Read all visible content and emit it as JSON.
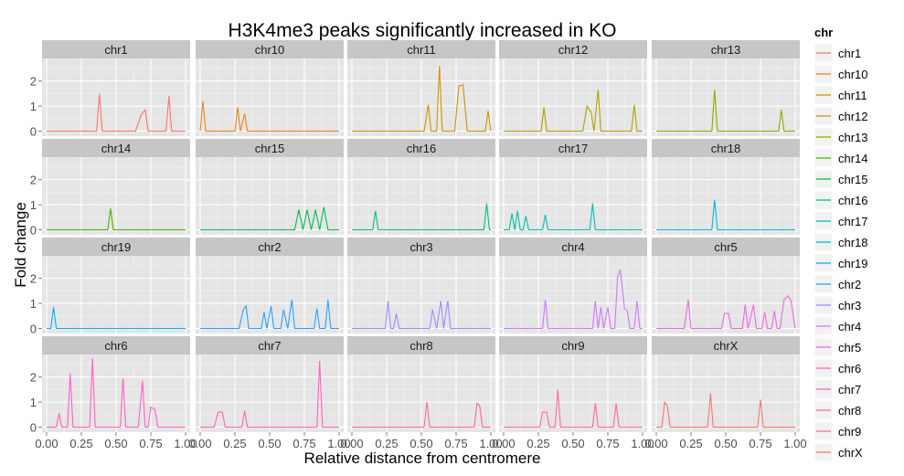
{
  "chart_data": {
    "type": "line",
    "title": "H3K4me3 peaks significantly increased in KO",
    "xlabel": "Relative distance from centromere",
    "ylabel": "Fold change",
    "xlim": [
      0,
      1
    ],
    "ylim": [
      -0.2,
      2.9
    ],
    "x_ticks": [
      0,
      0.25,
      0.5,
      0.75,
      1
    ],
    "x_tick_labels": [
      "0.00",
      "0.25",
      "0.50",
      "0.75",
      "1.00"
    ],
    "y_ticks": [
      0,
      1,
      2
    ],
    "y_tick_labels": [
      "0",
      "1",
      "2"
    ],
    "grid": true,
    "layout": "facet-wrap 5 columns x 4 rows",
    "legend": {
      "title": "chr",
      "position": "right"
    },
    "series": [
      {
        "name": "chr1",
        "color": "#F8766D",
        "points": [
          [
            0,
            0
          ],
          [
            0.36,
            0
          ],
          [
            0.38,
            1.5
          ],
          [
            0.4,
            0
          ],
          [
            0.64,
            0
          ],
          [
            0.68,
            0.65
          ],
          [
            0.71,
            0.85
          ],
          [
            0.73,
            0
          ],
          [
            0.86,
            0
          ],
          [
            0.88,
            1.4
          ],
          [
            0.9,
            0
          ],
          [
            1.0,
            0
          ]
        ]
      },
      {
        "name": "chr10",
        "color": "#E7851E",
        "points": [
          [
            0,
            0
          ],
          [
            0.02,
            1.2
          ],
          [
            0.04,
            0
          ],
          [
            0.25,
            0
          ],
          [
            0.27,
            0.95
          ],
          [
            0.29,
            0
          ],
          [
            0.32,
            0.7
          ],
          [
            0.34,
            0
          ],
          [
            1.0,
            0
          ]
        ]
      },
      {
        "name": "chr11",
        "color": "#D09400",
        "points": [
          [
            0,
            0
          ],
          [
            0.52,
            0
          ],
          [
            0.55,
            1.05
          ],
          [
            0.57,
            0
          ],
          [
            0.61,
            0
          ],
          [
            0.63,
            2.6
          ],
          [
            0.65,
            0
          ],
          [
            0.74,
            0
          ],
          [
            0.77,
            1.8
          ],
          [
            0.8,
            1.85
          ],
          [
            0.83,
            0
          ],
          [
            0.96,
            0
          ],
          [
            0.98,
            0.8
          ],
          [
            1.0,
            0
          ]
        ]
      },
      {
        "name": "chr12",
        "color": "#B2A100",
        "points": [
          [
            0,
            0
          ],
          [
            0.27,
            0
          ],
          [
            0.29,
            0.95
          ],
          [
            0.31,
            0
          ],
          [
            0.57,
            0
          ],
          [
            0.6,
            1.0
          ],
          [
            0.63,
            0.75
          ],
          [
            0.65,
            0
          ],
          [
            0.68,
            1.65
          ],
          [
            0.7,
            0
          ],
          [
            0.92,
            0
          ],
          [
            0.94,
            1.05
          ],
          [
            0.96,
            0
          ],
          [
            1.0,
            0
          ]
        ]
      },
      {
        "name": "chr13",
        "color": "#89AC00",
        "points": [
          [
            0,
            0
          ],
          [
            0.4,
            0
          ],
          [
            0.42,
            1.65
          ],
          [
            0.44,
            0
          ],
          [
            0.88,
            0
          ],
          [
            0.9,
            0.85
          ],
          [
            0.92,
            0
          ],
          [
            1.0,
            0
          ]
        ]
      },
      {
        "name": "chr14",
        "color": "#45B500",
        "points": [
          [
            0,
            0
          ],
          [
            0.44,
            0
          ],
          [
            0.46,
            0.85
          ],
          [
            0.48,
            0
          ],
          [
            1.0,
            0
          ]
        ]
      },
      {
        "name": "chr15",
        "color": "#00BC51",
        "points": [
          [
            0,
            0
          ],
          [
            0.68,
            0
          ],
          [
            0.71,
            0.8
          ],
          [
            0.74,
            0
          ],
          [
            0.77,
            0.8
          ],
          [
            0.8,
            0
          ],
          [
            0.83,
            0.8
          ],
          [
            0.86,
            0
          ],
          [
            0.89,
            0.9
          ],
          [
            0.92,
            0
          ],
          [
            1.0,
            0
          ]
        ]
      },
      {
        "name": "chr16",
        "color": "#00C087",
        "points": [
          [
            0,
            0
          ],
          [
            0.15,
            0
          ],
          [
            0.17,
            0.75
          ],
          [
            0.19,
            0
          ],
          [
            0.95,
            0
          ],
          [
            0.97,
            1.05
          ],
          [
            0.99,
            0
          ],
          [
            1.0,
            0
          ]
        ]
      },
      {
        "name": "chr17",
        "color": "#00C0B2",
        "points": [
          [
            0,
            0
          ],
          [
            0.04,
            0
          ],
          [
            0.06,
            0.65
          ],
          [
            0.08,
            0
          ],
          [
            0.1,
            0.75
          ],
          [
            0.12,
            0
          ],
          [
            0.14,
            0
          ],
          [
            0.16,
            0.55
          ],
          [
            0.18,
            0
          ],
          [
            0.28,
            0
          ],
          [
            0.3,
            0.6
          ],
          [
            0.32,
            0
          ],
          [
            0.62,
            0
          ],
          [
            0.64,
            1.05
          ],
          [
            0.66,
            0
          ],
          [
            1.0,
            0
          ]
        ]
      },
      {
        "name": "chr18",
        "color": "#00BCD6",
        "points": [
          [
            0,
            0
          ],
          [
            0.4,
            0
          ],
          [
            0.42,
            1.2
          ],
          [
            0.44,
            0
          ],
          [
            1.0,
            0
          ]
        ]
      },
      {
        "name": "chr19",
        "color": "#00B3F2",
        "points": [
          [
            0,
            0
          ],
          [
            0.03,
            0
          ],
          [
            0.05,
            0.85
          ],
          [
            0.07,
            0
          ],
          [
            1.0,
            0
          ]
        ]
      },
      {
        "name": "chr2",
        "color": "#29A3FF",
        "points": [
          [
            0,
            0
          ],
          [
            0.28,
            0
          ],
          [
            0.31,
            0.75
          ],
          [
            0.33,
            0.9
          ],
          [
            0.35,
            0
          ],
          [
            0.44,
            0
          ],
          [
            0.46,
            0.65
          ],
          [
            0.48,
            0
          ],
          [
            0.51,
            0.9
          ],
          [
            0.53,
            0
          ],
          [
            0.58,
            0
          ],
          [
            0.6,
            0.75
          ],
          [
            0.63,
            0
          ],
          [
            0.66,
            1.15
          ],
          [
            0.68,
            0
          ],
          [
            0.82,
            0
          ],
          [
            0.84,
            0.8
          ],
          [
            0.86,
            0
          ],
          [
            0.9,
            0
          ],
          [
            0.92,
            1.15
          ],
          [
            0.94,
            0
          ],
          [
            1.0,
            0
          ]
        ]
      },
      {
        "name": "chr3",
        "color": "#9C8DFF",
        "points": [
          [
            0,
            0
          ],
          [
            0.24,
            0
          ],
          [
            0.26,
            1.1
          ],
          [
            0.28,
            0
          ],
          [
            0.3,
            0
          ],
          [
            0.32,
            0.6
          ],
          [
            0.34,
            0
          ],
          [
            0.56,
            0
          ],
          [
            0.58,
            0.75
          ],
          [
            0.61,
            0
          ],
          [
            0.64,
            1.1
          ],
          [
            0.66,
            0
          ],
          [
            0.69,
            1.1
          ],
          [
            0.71,
            0
          ],
          [
            1.0,
            0
          ]
        ]
      },
      {
        "name": "chr4",
        "color": "#D277FF",
        "points": [
          [
            0,
            0
          ],
          [
            0.28,
            0
          ],
          [
            0.3,
            1.15
          ],
          [
            0.32,
            0
          ],
          [
            0.64,
            0
          ],
          [
            0.66,
            1.1
          ],
          [
            0.68,
            0
          ],
          [
            0.7,
            0.85
          ],
          [
            0.72,
            0
          ],
          [
            0.75,
            0.85
          ],
          [
            0.77,
            0
          ],
          [
            0.8,
            0
          ],
          [
            0.82,
            2.05
          ],
          [
            0.84,
            2.35
          ],
          [
            0.87,
            0.8
          ],
          [
            0.89,
            0.7
          ],
          [
            0.91,
            0
          ],
          [
            0.94,
            0
          ],
          [
            0.96,
            1.1
          ],
          [
            0.98,
            0
          ],
          [
            1.0,
            0
          ]
        ]
      },
      {
        "name": "chr5",
        "color": "#F166E8",
        "points": [
          [
            0,
            0
          ],
          [
            0.2,
            0
          ],
          [
            0.23,
            1.15
          ],
          [
            0.25,
            0
          ],
          [
            0.47,
            0
          ],
          [
            0.49,
            0.6
          ],
          [
            0.52,
            0.6
          ],
          [
            0.54,
            0
          ],
          [
            0.62,
            0
          ],
          [
            0.64,
            0.95
          ],
          [
            0.66,
            0
          ],
          [
            0.7,
            0.95
          ],
          [
            0.72,
            0
          ],
          [
            0.76,
            0
          ],
          [
            0.78,
            0.65
          ],
          [
            0.8,
            0
          ],
          [
            0.83,
            0
          ],
          [
            0.85,
            0.7
          ],
          [
            0.87,
            0
          ],
          [
            0.89,
            0
          ],
          [
            0.92,
            1.15
          ],
          [
            0.95,
            1.3
          ],
          [
            0.97,
            1.1
          ],
          [
            1.0,
            0
          ]
        ]
      },
      {
        "name": "chr6",
        "color": "#FF61C7",
        "points": [
          [
            0,
            0
          ],
          [
            0.07,
            0
          ],
          [
            0.09,
            0.55
          ],
          [
            0.11,
            0
          ],
          [
            0.15,
            0
          ],
          [
            0.17,
            2.15
          ],
          [
            0.19,
            0
          ],
          [
            0.31,
            0
          ],
          [
            0.33,
            2.75
          ],
          [
            0.35,
            0
          ],
          [
            0.53,
            0
          ],
          [
            0.55,
            1.95
          ],
          [
            0.57,
            0
          ],
          [
            0.66,
            0
          ],
          [
            0.69,
            1.85
          ],
          [
            0.71,
            0
          ],
          [
            0.73,
            0
          ],
          [
            0.75,
            0.8
          ],
          [
            0.78,
            0.7
          ],
          [
            0.8,
            0
          ],
          [
            1.0,
            0
          ]
        ]
      },
      {
        "name": "chr7",
        "color": "#FF62BC",
        "points": [
          [
            0,
            0
          ],
          [
            0.1,
            0
          ],
          [
            0.13,
            0.6
          ],
          [
            0.16,
            0.6
          ],
          [
            0.18,
            0
          ],
          [
            0.3,
            0
          ],
          [
            0.32,
            0.65
          ],
          [
            0.34,
            0
          ],
          [
            0.84,
            0
          ],
          [
            0.86,
            2.65
          ],
          [
            0.88,
            0
          ],
          [
            1.0,
            0
          ]
        ]
      },
      {
        "name": "chr8",
        "color": "#FF65AC",
        "points": [
          [
            0,
            0
          ],
          [
            0.52,
            0
          ],
          [
            0.54,
            1.0
          ],
          [
            0.56,
            0
          ],
          [
            0.88,
            0
          ],
          [
            0.9,
            0.95
          ],
          [
            0.92,
            0.85
          ],
          [
            0.94,
            0
          ],
          [
            1.0,
            0
          ]
        ]
      },
      {
        "name": "chr9",
        "color": "#FF6C91",
        "points": [
          [
            0,
            0
          ],
          [
            0.26,
            0
          ],
          [
            0.28,
            0.6
          ],
          [
            0.31,
            0.6
          ],
          [
            0.33,
            0
          ],
          [
            0.37,
            0
          ],
          [
            0.39,
            1.5
          ],
          [
            0.41,
            0
          ],
          [
            0.64,
            0
          ],
          [
            0.66,
            0.95
          ],
          [
            0.68,
            0
          ],
          [
            0.79,
            0
          ],
          [
            0.81,
            0.95
          ],
          [
            0.83,
            0
          ],
          [
            1.0,
            0
          ]
        ]
      },
      {
        "name": "chrX",
        "color": "#F8766D",
        "points": [
          [
            0,
            0
          ],
          [
            0.04,
            0
          ],
          [
            0.06,
            1.0
          ],
          [
            0.08,
            0.85
          ],
          [
            0.1,
            0
          ],
          [
            0.37,
            0
          ],
          [
            0.39,
            1.35
          ],
          [
            0.41,
            0
          ],
          [
            0.73,
            0
          ],
          [
            0.75,
            1.1
          ],
          [
            0.77,
            0
          ],
          [
            1.0,
            0
          ]
        ]
      }
    ]
  }
}
